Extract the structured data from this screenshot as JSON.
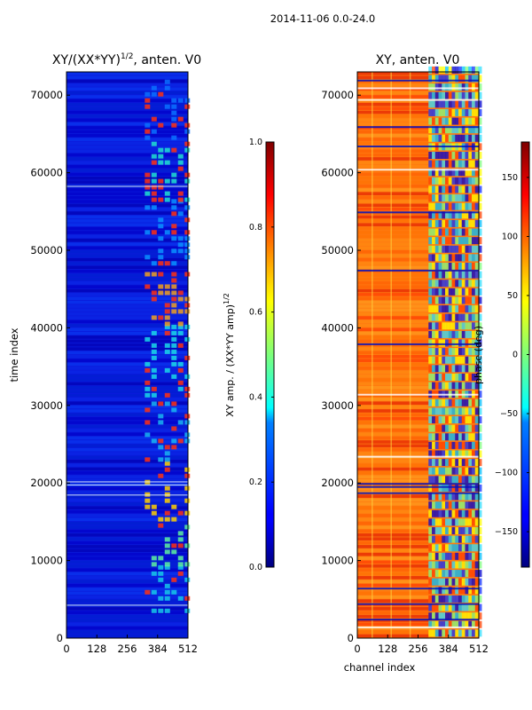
{
  "figure": {
    "suptitle": "2014-11-06 0.0-24.0"
  },
  "chart_data": [
    {
      "type": "heatmap",
      "title": "XY/(XX*YY)^{1/2}, anten. V0",
      "title_main": "XY/(XX*YY)",
      "title_sup": "1/2",
      "title_tail": ", anten. V0",
      "xlabel": "",
      "ylabel": "time index",
      "xlim": [
        0,
        512
      ],
      "ylim": [
        0,
        73000
      ],
      "xticks": [
        0,
        128,
        256,
        384,
        512
      ],
      "yticks": [
        0,
        10000,
        20000,
        30000,
        40000,
        50000,
        60000,
        70000
      ],
      "colormap": "jet",
      "colorbar": {
        "label": "XY amp. / (XX*YY amp)^{1/2}",
        "label_main": "XY amp. / (XX*YY amp)",
        "label_sup": "1/2",
        "range": [
          0.0,
          1.0
        ],
        "ticks": [
          "0.0",
          "0.2",
          "0.4",
          "0.6",
          "0.8",
          "1.0"
        ]
      },
      "description": "mostly low amplitude (~0.1) with elevated bands between channels ~330-500, strongest near time index 15000-22000 and 43000-46000"
    },
    {
      "type": "heatmap",
      "title": "XY, anten. V0",
      "xlabel": "channel index",
      "ylabel": "",
      "xlim": [
        0,
        512
      ],
      "ylim": [
        0,
        73000
      ],
      "xticks": [
        0,
        128,
        256,
        384,
        512
      ],
      "yticks": [
        0,
        10000,
        20000,
        30000,
        40000,
        50000,
        60000,
        70000
      ],
      "colormap": "jet",
      "colorbar": {
        "label": "phase (deg)",
        "range": [
          -180,
          180
        ],
        "ticks": [
          "-150",
          "-100",
          "-50",
          "0",
          "50",
          "100",
          "150"
        ]
      },
      "description": "phase mostly around +100 to +150 deg (orange/red) in channels 0-300, mixed/noisy phase in channels 300-512"
    }
  ]
}
